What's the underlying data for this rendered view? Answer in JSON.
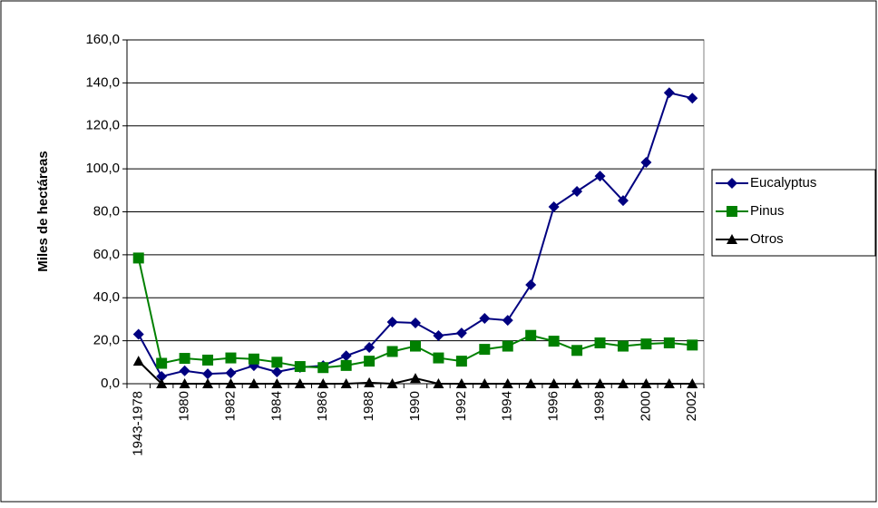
{
  "chart_data": {
    "type": "line",
    "y_label": "Miles de hectáreas",
    "categories": [
      "1943-1978",
      null,
      "1980",
      null,
      "1982",
      null,
      "1984",
      null,
      "1986",
      null,
      "1988",
      null,
      "1990",
      null,
      "1992",
      null,
      "1994",
      null,
      "1996",
      null,
      "1998",
      null,
      "2000",
      null,
      "2002"
    ],
    "series": [
      {
        "name": "Eucalyptus",
        "color": "#000080",
        "marker": "diamond",
        "values": [
          23,
          3.4,
          6,
          4.6,
          5,
          8.4,
          5.5,
          7.6,
          8.4,
          13,
          16.9,
          28.7,
          28.3,
          22.4,
          23.6,
          30.4,
          29.5,
          46,
          82.3,
          89.5,
          96.6,
          85.2,
          103,
          135.4,
          132.9
        ]
      },
      {
        "name": "Pinus",
        "color": "#008000",
        "marker": "square",
        "values": [
          58.5,
          9.5,
          11.8,
          11,
          12,
          11.5,
          10,
          8,
          7.5,
          8.5,
          10.5,
          15,
          17.5,
          12,
          10.5,
          16,
          17.5,
          22.5,
          19.8,
          15.5,
          19,
          17.5,
          18.5,
          19,
          18
        ]
      },
      {
        "name": "Otros",
        "color": "#000000",
        "marker": "triangle",
        "values": [
          10.5,
          0,
          0,
          0,
          0,
          0,
          0,
          0,
          0,
          0,
          0.5,
          0,
          2.5,
          0,
          0,
          0,
          0,
          0,
          0,
          0,
          0,
          0,
          0,
          0,
          0
        ]
      }
    ],
    "ylim": [
      0,
      160
    ],
    "yticks": [
      {
        "value": 0,
        "label": "0,0"
      },
      {
        "value": 20,
        "label": "20,0"
      },
      {
        "value": 40,
        "label": "40,0"
      },
      {
        "value": 60,
        "label": "60,0"
      },
      {
        "value": 80,
        "label": "80,0"
      },
      {
        "value": 100,
        "label": "100,0"
      },
      {
        "value": 120,
        "label": "120,0"
      },
      {
        "value": 140,
        "label": "140,0"
      },
      {
        "value": 160,
        "label": "160,0"
      }
    ],
    "grid": true,
    "legend": "right"
  }
}
